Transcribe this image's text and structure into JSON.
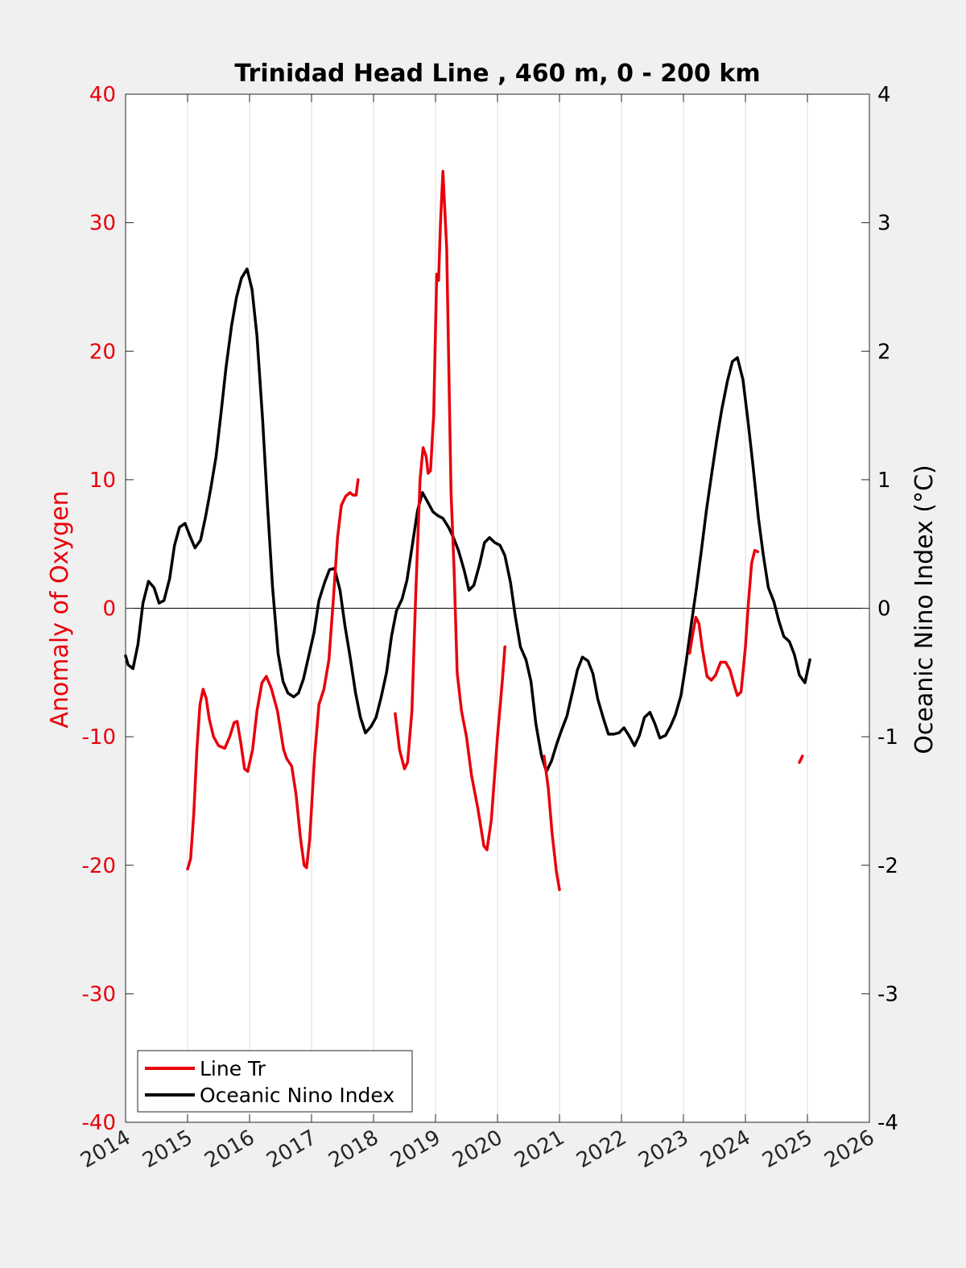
{
  "chart_data": {
    "type": "line",
    "title": "Trinidad Head Line , 460 m, 0 - 200 km",
    "xlabel": "",
    "ylabel_left": "Anomaly of Oxygen",
    "ylabel_right": "Oceanic Nino Index (°C)",
    "xlim": [
      2014,
      2026
    ],
    "ylim_left": [
      -40,
      40
    ],
    "ylim_right": [
      -4,
      4
    ],
    "x_ticks": [
      "2014",
      "2015",
      "2016",
      "2017",
      "2018",
      "2019",
      "2020",
      "2021",
      "2022",
      "2023",
      "2024",
      "2025",
      "2026"
    ],
    "y_left_ticks": [
      "-40",
      "-30",
      "-20",
      "-10",
      "0",
      "10",
      "20",
      "30",
      "40"
    ],
    "y_right_ticks": [
      "-4",
      "-3",
      "-2",
      "-1",
      "0",
      "1",
      "2",
      "3",
      "4"
    ],
    "grid": "vertical",
    "legend_location": "bottom-left",
    "colors": {
      "line_tr": "#e8000b",
      "oni": "#000000",
      "left_axis": "#e8000b",
      "right_axis": "#000000"
    },
    "series": [
      {
        "name": "Line Tr",
        "axis": "left",
        "segments": [
          [
            [
              2015.0,
              -20.3
            ],
            [
              2015.05,
              -19.5
            ],
            [
              2015.1,
              -16.0
            ],
            [
              2015.15,
              -11.0
            ],
            [
              2015.2,
              -7.5
            ],
            [
              2015.25,
              -6.3
            ],
            [
              2015.3,
              -7.0
            ],
            [
              2015.35,
              -8.6
            ],
            [
              2015.42,
              -10.0
            ],
            [
              2015.5,
              -10.7
            ],
            [
              2015.6,
              -10.9
            ],
            [
              2015.68,
              -10.0
            ],
            [
              2015.75,
              -8.9
            ],
            [
              2015.8,
              -8.8
            ],
            [
              2015.86,
              -10.5
            ],
            [
              2015.92,
              -12.5
            ],
            [
              2015.97,
              -12.7
            ],
            [
              2016.05,
              -11.0
            ],
            [
              2016.12,
              -8.0
            ],
            [
              2016.2,
              -5.8
            ],
            [
              2016.27,
              -5.3
            ],
            [
              2016.35,
              -6.2
            ],
            [
              2016.45,
              -8.0
            ],
            [
              2016.55,
              -11.0
            ],
            [
              2016.6,
              -11.7
            ],
            [
              2016.68,
              -12.3
            ],
            [
              2016.75,
              -14.5
            ],
            [
              2016.82,
              -17.8
            ],
            [
              2016.88,
              -20.0
            ],
            [
              2016.92,
              -20.2
            ],
            [
              2016.97,
              -18.0
            ],
            [
              2017.05,
              -11.5
            ],
            [
              2017.12,
              -7.5
            ],
            [
              2017.2,
              -6.3
            ],
            [
              2017.28,
              -4.0
            ],
            [
              2017.35,
              0.5
            ],
            [
              2017.42,
              5.5
            ],
            [
              2017.48,
              8.0
            ],
            [
              2017.55,
              8.7
            ],
            [
              2017.62,
              9.0
            ],
            [
              2017.67,
              8.8
            ],
            [
              2017.72,
              8.8
            ],
            [
              2017.75,
              10.0
            ]
          ],
          [
            [
              2018.35,
              -8.2
            ],
            [
              2018.42,
              -11.0
            ],
            [
              2018.5,
              -12.5
            ],
            [
              2018.55,
              -12.0
            ],
            [
              2018.62,
              -8.0
            ],
            [
              2018.68,
              1.0
            ],
            [
              2018.75,
              10.0
            ],
            [
              2018.8,
              12.5
            ],
            [
              2018.85,
              11.8
            ],
            [
              2018.88,
              10.5
            ],
            [
              2018.92,
              10.7
            ],
            [
              2018.97,
              15.0
            ],
            [
              2019.02,
              26.0
            ],
            [
              2019.05,
              25.5
            ],
            [
              2019.08,
              30.0
            ],
            [
              2019.12,
              34.0
            ],
            [
              2019.18,
              28.0
            ],
            [
              2019.25,
              9.0
            ],
            [
              2019.3,
              3.0
            ],
            [
              2019.35,
              -5.0
            ],
            [
              2019.42,
              -8.0
            ],
            [
              2019.5,
              -10.0
            ],
            [
              2019.58,
              -13.0
            ],
            [
              2019.68,
              -15.5
            ],
            [
              2019.78,
              -18.5
            ],
            [
              2019.83,
              -18.8
            ],
            [
              2019.9,
              -16.5
            ],
            [
              2020.0,
              -10.0
            ],
            [
              2020.08,
              -5.5
            ],
            [
              2020.12,
              -3.0
            ]
          ],
          [
            [
              2020.75,
              -11.5
            ],
            [
              2020.82,
              -14.0
            ],
            [
              2020.88,
              -17.5
            ],
            [
              2020.95,
              -20.5
            ],
            [
              2021.0,
              -21.9
            ]
          ],
          [
            [
              2023.1,
              -3.5
            ],
            [
              2023.15,
              -2.0
            ],
            [
              2023.2,
              -0.7
            ],
            [
              2023.25,
              -1.2
            ],
            [
              2023.3,
              -3.0
            ],
            [
              2023.38,
              -5.3
            ],
            [
              2023.45,
              -5.6
            ],
            [
              2023.52,
              -5.2
            ],
            [
              2023.6,
              -4.2
            ],
            [
              2023.68,
              -4.2
            ],
            [
              2023.75,
              -4.8
            ],
            [
              2023.82,
              -6.0
            ],
            [
              2023.87,
              -6.8
            ],
            [
              2023.93,
              -6.5
            ],
            [
              2024.0,
              -3.0
            ],
            [
              2024.05,
              0.5
            ],
            [
              2024.1,
              3.5
            ],
            [
              2024.15,
              4.5
            ],
            [
              2024.2,
              4.4
            ]
          ],
          [
            [
              2024.87,
              -12.0
            ],
            [
              2024.9,
              -11.7
            ],
            [
              2024.92,
              -11.5
            ]
          ]
        ]
      },
      {
        "name": "Oceanic Nino Index",
        "axis": "right",
        "values": [
          [
            2014.0,
            -0.37
          ],
          [
            2014.04,
            -0.44
          ],
          [
            2014.12,
            -0.47
          ],
          [
            2014.2,
            -0.28
          ],
          [
            2014.28,
            0.04
          ],
          [
            2014.37,
            0.21
          ],
          [
            2014.46,
            0.16
          ],
          [
            2014.54,
            0.04
          ],
          [
            2014.62,
            0.06
          ],
          [
            2014.71,
            0.23
          ],
          [
            2014.79,
            0.49
          ],
          [
            2014.87,
            0.63
          ],
          [
            2014.96,
            0.66
          ],
          [
            2015.04,
            0.56
          ],
          [
            2015.12,
            0.47
          ],
          [
            2015.21,
            0.53
          ],
          [
            2015.29,
            0.71
          ],
          [
            2015.37,
            0.92
          ],
          [
            2015.46,
            1.18
          ],
          [
            2015.54,
            1.52
          ],
          [
            2015.62,
            1.87
          ],
          [
            2015.71,
            2.2
          ],
          [
            2015.79,
            2.42
          ],
          [
            2015.87,
            2.57
          ],
          [
            2015.96,
            2.64
          ],
          [
            2016.04,
            2.48
          ],
          [
            2016.12,
            2.12
          ],
          [
            2016.21,
            1.47
          ],
          [
            2016.29,
            0.8
          ],
          [
            2016.37,
            0.17
          ],
          [
            2016.46,
            -0.35
          ],
          [
            2016.54,
            -0.57
          ],
          [
            2016.62,
            -0.66
          ],
          [
            2016.71,
            -0.69
          ],
          [
            2016.79,
            -0.66
          ],
          [
            2016.87,
            -0.55
          ],
          [
            2016.96,
            -0.36
          ],
          [
            2017.04,
            -0.19
          ],
          [
            2017.12,
            0.06
          ],
          [
            2017.21,
            0.2
          ],
          [
            2017.29,
            0.3
          ],
          [
            2017.37,
            0.31
          ],
          [
            2017.46,
            0.14
          ],
          [
            2017.54,
            -0.14
          ],
          [
            2017.62,
            -0.37
          ],
          [
            2017.71,
            -0.66
          ],
          [
            2017.79,
            -0.85
          ],
          [
            2017.87,
            -0.97
          ],
          [
            2017.96,
            -0.92
          ],
          [
            2018.04,
            -0.85
          ],
          [
            2018.12,
            -0.7
          ],
          [
            2018.21,
            -0.5
          ],
          [
            2018.29,
            -0.22
          ],
          [
            2018.37,
            -0.02
          ],
          [
            2018.46,
            0.07
          ],
          [
            2018.54,
            0.22
          ],
          [
            2018.62,
            0.47
          ],
          [
            2018.71,
            0.76
          ],
          [
            2018.79,
            0.9
          ],
          [
            2018.87,
            0.83
          ],
          [
            2018.96,
            0.75
          ],
          [
            2019.04,
            0.72
          ],
          [
            2019.12,
            0.7
          ],
          [
            2019.21,
            0.63
          ],
          [
            2019.29,
            0.55
          ],
          [
            2019.37,
            0.45
          ],
          [
            2019.46,
            0.3
          ],
          [
            2019.54,
            0.14
          ],
          [
            2019.62,
            0.18
          ],
          [
            2019.71,
            0.34
          ],
          [
            2019.79,
            0.51
          ],
          [
            2019.87,
            0.55
          ],
          [
            2019.96,
            0.51
          ],
          [
            2020.04,
            0.49
          ],
          [
            2020.12,
            0.41
          ],
          [
            2020.21,
            0.2
          ],
          [
            2020.29,
            -0.07
          ],
          [
            2020.37,
            -0.3
          ],
          [
            2020.46,
            -0.4
          ],
          [
            2020.54,
            -0.57
          ],
          [
            2020.62,
            -0.9
          ],
          [
            2020.71,
            -1.15
          ],
          [
            2020.79,
            -1.27
          ],
          [
            2020.87,
            -1.19
          ],
          [
            2020.96,
            -1.05
          ],
          [
            2021.04,
            -0.94
          ],
          [
            2021.12,
            -0.84
          ],
          [
            2021.21,
            -0.65
          ],
          [
            2021.29,
            -0.48
          ],
          [
            2021.37,
            -0.38
          ],
          [
            2021.46,
            -0.41
          ],
          [
            2021.54,
            -0.51
          ],
          [
            2021.62,
            -0.71
          ],
          [
            2021.71,
            -0.86
          ],
          [
            2021.79,
            -0.98
          ],
          [
            2021.87,
            -0.98
          ],
          [
            2021.96,
            -0.97
          ],
          [
            2022.04,
            -0.93
          ],
          [
            2022.12,
            -0.99
          ],
          [
            2022.21,
            -1.07
          ],
          [
            2022.29,
            -0.99
          ],
          [
            2022.37,
            -0.85
          ],
          [
            2022.46,
            -0.81
          ],
          [
            2022.54,
            -0.9
          ],
          [
            2022.62,
            -1.01
          ],
          [
            2022.71,
            -0.99
          ],
          [
            2022.79,
            -0.92
          ],
          [
            2022.87,
            -0.83
          ],
          [
            2022.96,
            -0.68
          ],
          [
            2023.04,
            -0.43
          ],
          [
            2023.12,
            -0.15
          ],
          [
            2023.21,
            0.16
          ],
          [
            2023.29,
            0.45
          ],
          [
            2023.37,
            0.76
          ],
          [
            2023.46,
            1.06
          ],
          [
            2023.54,
            1.32
          ],
          [
            2023.62,
            1.55
          ],
          [
            2023.71,
            1.77
          ],
          [
            2023.79,
            1.92
          ],
          [
            2023.87,
            1.95
          ],
          [
            2023.96,
            1.78
          ],
          [
            2024.04,
            1.46
          ],
          [
            2024.12,
            1.12
          ],
          [
            2024.21,
            0.7
          ],
          [
            2024.29,
            0.41
          ],
          [
            2024.37,
            0.16
          ],
          [
            2024.46,
            0.05
          ],
          [
            2024.54,
            -0.1
          ],
          [
            2024.62,
            -0.22
          ],
          [
            2024.71,
            -0.26
          ],
          [
            2024.79,
            -0.36
          ],
          [
            2024.87,
            -0.52
          ],
          [
            2024.96,
            -0.58
          ],
          [
            2025.04,
            -0.4
          ]
        ]
      }
    ]
  }
}
